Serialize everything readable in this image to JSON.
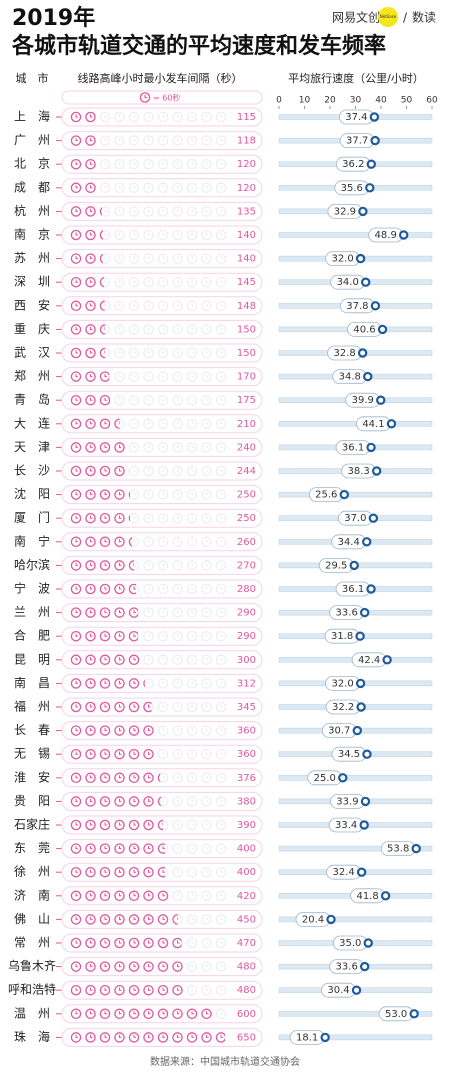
{
  "header": {
    "title_line1": "2019年",
    "title_line2": "各城市轨道交通的平均速度和发车频率",
    "brand": "网易文创",
    "brand_badge": "NetEase",
    "section": "数读"
  },
  "chart_data": [
    {
      "type": "pictogram",
      "title": "线路高峰小时最小发车间隔（秒）",
      "category_label": "城　市",
      "unit_value": 60,
      "unit_label": "= 60秒",
      "color": "#e2579f",
      "categories": [
        "上　海",
        "广　州",
        "北　京",
        "成　都",
        "杭　州",
        "南　京",
        "苏　州",
        "深　圳",
        "西　安",
        "重　庆",
        "武　汉",
        "郑　州",
        "青　岛",
        "大　连",
        "天　津",
        "长　沙",
        "沈　阳",
        "厦　门",
        "南　宁",
        "哈尔滨",
        "宁　波",
        "兰　州",
        "合　肥",
        "昆　明",
        "南　昌",
        "福　州",
        "长　春",
        "无　锡",
        "淮　安",
        "贵　阳",
        "石家庄",
        "东　莞",
        "徐　州",
        "济　南",
        "佛　山",
        "常　州",
        "乌鲁木齐",
        "呼和浩特",
        "温　州",
        "珠　海"
      ],
      "values": [
        115,
        118,
        120,
        120,
        135,
        140,
        140,
        145,
        148,
        150,
        150,
        170,
        175,
        210,
        240,
        244,
        250,
        250,
        260,
        270,
        280,
        290,
        290,
        300,
        312,
        345,
        360,
        360,
        376,
        380,
        390,
        400,
        400,
        420,
        450,
        470,
        480,
        480,
        600,
        650
      ]
    },
    {
      "type": "dot",
      "title": "平均旅行速度（公里/小时）",
      "color": "#1d5a9c",
      "values": [
        37.4,
        37.7,
        36.2,
        35.6,
        32.9,
        48.9,
        32,
        34,
        37.8,
        40.6,
        32.8,
        34.8,
        39.9,
        44.1,
        36.1,
        38.3,
        25.6,
        37,
        34.4,
        29.5,
        36.1,
        33.6,
        31.8,
        42.4,
        32,
        32.2,
        30.7,
        34.5,
        25,
        33.9,
        33.4,
        53.8,
        32.4,
        41.8,
        20.4,
        35,
        33.6,
        30.4,
        53,
        18.1
      ],
      "value_labels": [
        "37.4",
        "37.7",
        "36.2",
        "35.6",
        "32.9",
        "48.9",
        "32.0",
        "34.0",
        "37.8",
        "40.6",
        "32.8",
        "34.8",
        "39.9",
        "44.1",
        "36.1",
        "38.3",
        "25.6",
        "37.0",
        "34.4",
        "29.5",
        "36.1",
        "33.6",
        "31.8",
        "42.4",
        "32.0",
        "32.2",
        "30.7",
        "34.5",
        "25.0",
        "33.9",
        "33.4",
        "53.8",
        "32.4",
        "41.8",
        "20.4",
        "35.0",
        "33.6",
        "30.4",
        "53.0",
        "18.1"
      ],
      "xlim": [
        0,
        60
      ],
      "xticks": [
        0,
        10,
        20,
        30,
        40,
        50,
        60
      ]
    }
  ],
  "source": "数据来源：中国城市轨道交通协会"
}
